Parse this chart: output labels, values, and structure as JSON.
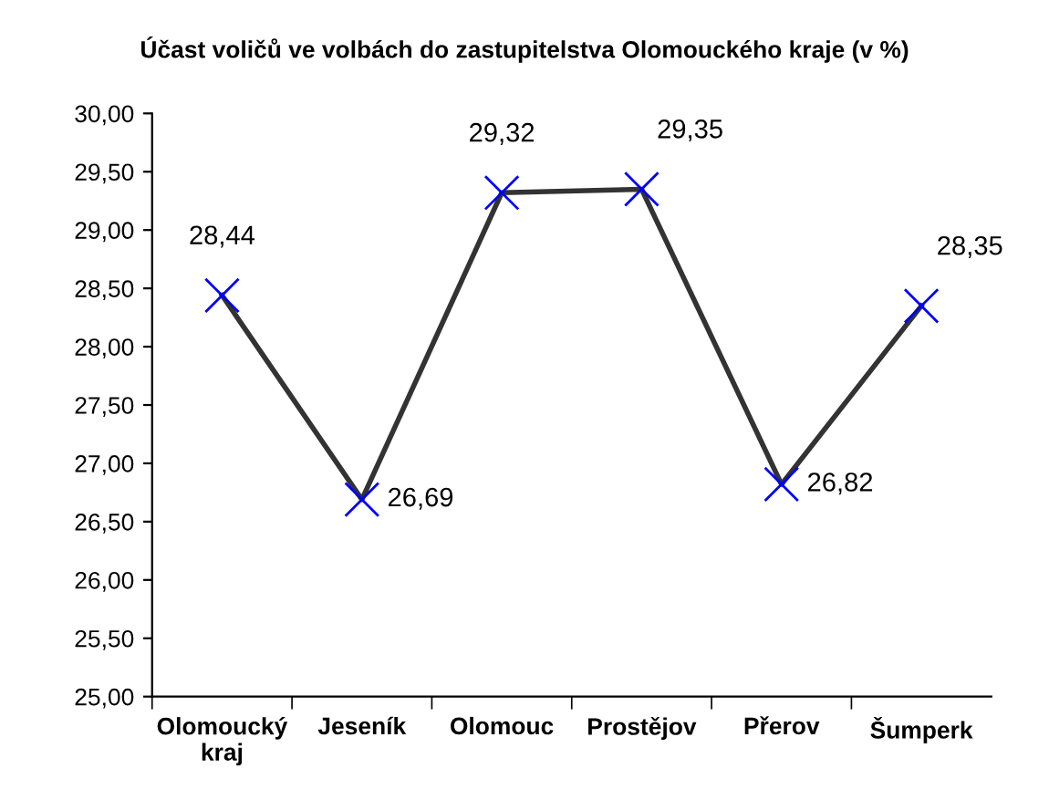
{
  "chart_data": {
    "type": "line",
    "title": "Účast voličů ve volbách do zastupitelstva Olomouckého kraje (v %)",
    "categories": [
      "Olomoucký\nkraj",
      "Jeseník",
      "Olomouc",
      "Prostějov",
      "Přerov",
      "Šumperk"
    ],
    "series": [
      {
        "color": "#333333",
        "values": [
          28.44,
          26.69,
          29.32,
          29.35,
          26.82,
          28.35
        ],
        "value_labels": [
          "28,44",
          "26,69",
          "29,32",
          "29,35",
          "26,82",
          "28,35"
        ]
      }
    ],
    "marker": "cross",
    "line_style": "solid",
    "grid": false,
    "ylim": [
      25,
      30
    ],
    "yticks": [
      {
        "value": 25,
        "label": "25,00"
      },
      {
        "value": 25.5,
        "label": "25,50"
      },
      {
        "value": 26,
        "label": "26,00"
      },
      {
        "value": 26.5,
        "label": "26,50"
      },
      {
        "value": 27,
        "label": "27,00"
      },
      {
        "value": 27.5,
        "label": "27,50"
      },
      {
        "value": 28,
        "label": "28,00"
      },
      {
        "value": 28.5,
        "label": "28,50"
      },
      {
        "value": 29,
        "label": "29,00"
      },
      {
        "value": 29.5,
        "label": "29,50"
      },
      {
        "value": 30,
        "label": "30,00"
      }
    ]
  }
}
